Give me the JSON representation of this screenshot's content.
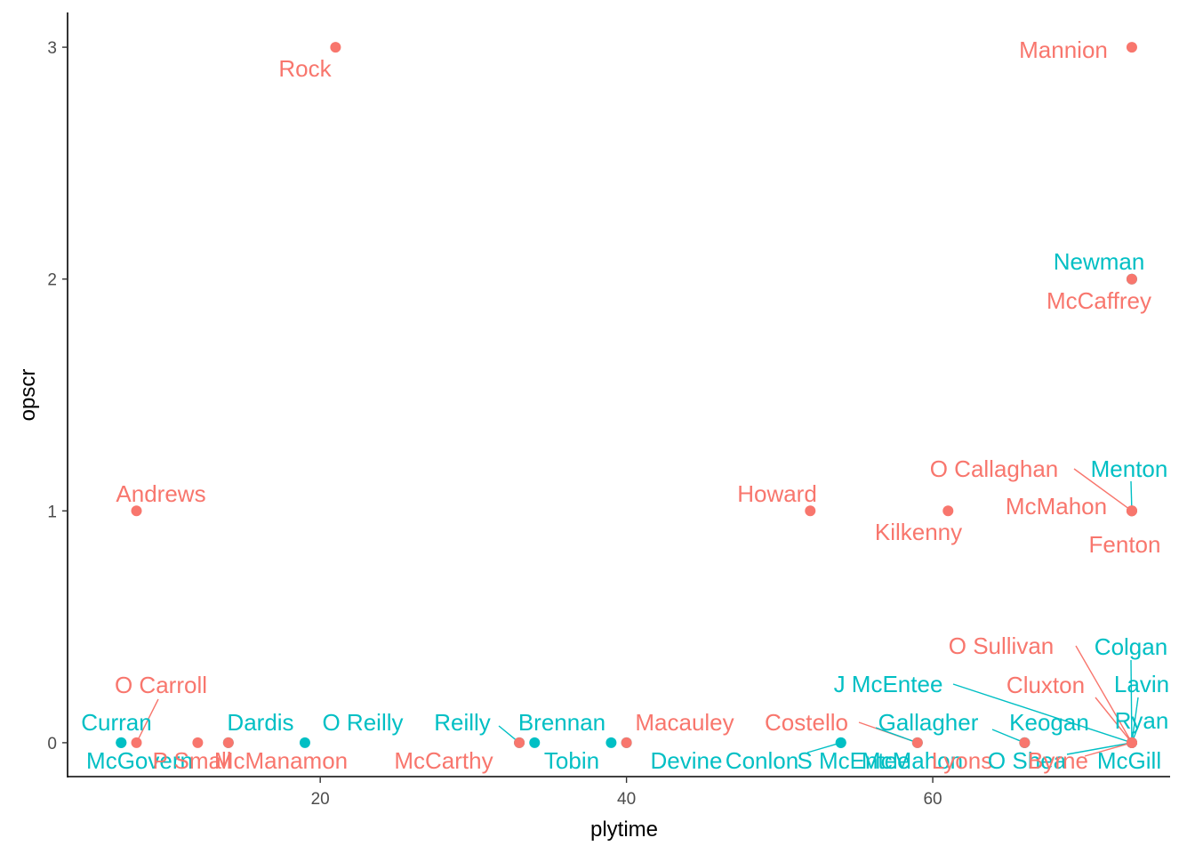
{
  "chart_data": {
    "type": "scatter",
    "title": "",
    "xlabel": "plytime",
    "ylabel": "opscr",
    "xlim": [
      3.5,
      75.5
    ],
    "ylim": [
      -0.15,
      3.15
    ],
    "x_ticks": [
      20,
      40,
      60
    ],
    "y_ticks": [
      0,
      1,
      2,
      3
    ],
    "grid": false,
    "legend": "none",
    "colors": {
      "red": "#F8766D",
      "teal": "#00BFC4",
      "axis": "#000000",
      "tick_text": "#4d4d4d"
    },
    "points": [
      {
        "label": "Rock",
        "x": 21,
        "y": 3,
        "color": "red"
      },
      {
        "label": "Mannion",
        "x": 73,
        "y": 3,
        "color": "red"
      },
      {
        "label": "Newman",
        "x": 73,
        "y": 2,
        "color": "teal"
      },
      {
        "label": "McCaffrey",
        "x": 73,
        "y": 2,
        "color": "red"
      },
      {
        "label": "Andrews",
        "x": 8,
        "y": 1,
        "color": "red"
      },
      {
        "label": "Howard",
        "x": 52,
        "y": 1,
        "color": "red"
      },
      {
        "label": "Kilkenny",
        "x": 61,
        "y": 1,
        "color": "red"
      },
      {
        "label": "O Callaghan",
        "x": 73,
        "y": 1,
        "color": "red"
      },
      {
        "label": "Menton",
        "x": 73,
        "y": 1,
        "color": "teal"
      },
      {
        "label": "McMahon",
        "x": 73,
        "y": 1,
        "color": "red"
      },
      {
        "label": "Fenton",
        "x": 73,
        "y": 1,
        "color": "red"
      },
      {
        "label": "Curran",
        "x": 7,
        "y": 0,
        "color": "teal"
      },
      {
        "label": "McGovern",
        "x": 7,
        "y": 0,
        "color": "teal"
      },
      {
        "label": "O Carroll",
        "x": 8,
        "y": 0,
        "color": "red"
      },
      {
        "label": "P Small",
        "x": 12,
        "y": 0,
        "color": "red"
      },
      {
        "label": "Dardis",
        "x": 14,
        "y": 0,
        "color": "teal"
      },
      {
        "label": "McManamon",
        "x": 14,
        "y": 0,
        "color": "red"
      },
      {
        "label": "O Reilly",
        "x": 19,
        "y": 0,
        "color": "teal"
      },
      {
        "label": "Reilly",
        "x": 33,
        "y": 0,
        "color": "teal"
      },
      {
        "label": "Brennan",
        "x": 34,
        "y": 0,
        "color": "teal"
      },
      {
        "label": "McCarthy",
        "x": 33,
        "y": 0,
        "color": "red"
      },
      {
        "label": "Tobin",
        "x": 39,
        "y": 0,
        "color": "teal"
      },
      {
        "label": "Macauley",
        "x": 40,
        "y": 0,
        "color": "red"
      },
      {
        "label": "Devine",
        "x": 40,
        "y": 0,
        "color": "teal"
      },
      {
        "label": "Conlon",
        "x": 54,
        "y": 0,
        "color": "teal"
      },
      {
        "label": "S McEntee",
        "x": 54,
        "y": 0,
        "color": "teal"
      },
      {
        "label": "Costello",
        "x": 59,
        "y": 0,
        "color": "red"
      },
      {
        "label": "McMahon",
        "x": 59,
        "y": 0,
        "color": "teal"
      },
      {
        "label": "Gallagher",
        "x": 66,
        "y": 0,
        "color": "teal"
      },
      {
        "label": "Keogan",
        "x": 66,
        "y": 0,
        "color": "teal"
      },
      {
        "label": "Lyons",
        "x": 66,
        "y": 0,
        "color": "red"
      },
      {
        "label": "O Sullivan",
        "x": 73,
        "y": 0,
        "color": "red"
      },
      {
        "label": "Colgan",
        "x": 73,
        "y": 0,
        "color": "teal"
      },
      {
        "label": "J McEntee",
        "x": 73,
        "y": 0,
        "color": "teal"
      },
      {
        "label": "Cluxton",
        "x": 73,
        "y": 0,
        "color": "red"
      },
      {
        "label": "Lavin",
        "x": 73,
        "y": 0,
        "color": "teal"
      },
      {
        "label": "Ryan",
        "x": 73,
        "y": 0,
        "color": "teal"
      },
      {
        "label": "O Shea",
        "x": 73,
        "y": 0,
        "color": "teal"
      },
      {
        "label": "Byrne",
        "x": 73,
        "y": 0,
        "color": "red"
      },
      {
        "label": "McGill",
        "x": 73,
        "y": 0,
        "color": "teal"
      }
    ]
  }
}
